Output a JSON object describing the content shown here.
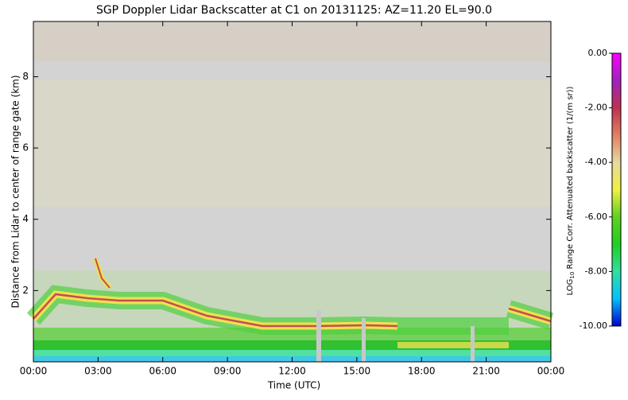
{
  "chart_data": {
    "type": "heatmap",
    "title": "SGP Doppler Lidar Backscatter at C1 on 20131125: AZ=11.20 EL=90.0",
    "x_label": "Time (UTC)",
    "y_label": "Distance from Lidar to center of range gate (km)",
    "xlim": [
      0,
      24
    ],
    "xticks": [
      {
        "value": 0,
        "label": "00:00"
      },
      {
        "value": 3,
        "label": "03:00"
      },
      {
        "value": 6,
        "label": "06:00"
      },
      {
        "value": 9,
        "label": "09:00"
      },
      {
        "value": 12,
        "label": "12:00"
      },
      {
        "value": 15,
        "label": "15:00"
      },
      {
        "value": 18,
        "label": "18:00"
      },
      {
        "value": 21,
        "label": "21:00"
      },
      {
        "value": 24,
        "label": "00:00"
      }
    ],
    "ylim": [
      0,
      9.55
    ],
    "yticks": [
      2,
      4,
      6,
      8
    ],
    "colorbar": {
      "label": {
        "base": "LOG",
        "subscript": "10",
        "text": " Range Corr. Attenuated backscatter (1/(m sr))"
      },
      "lim": [
        -10,
        0
      ],
      "ticks": [
        {
          "value": 0,
          "label": "0.00"
        },
        {
          "value": -2,
          "label": "-2.00"
        },
        {
          "value": -4,
          "label": "-4.00"
        },
        {
          "value": -6,
          "label": "-6.00"
        },
        {
          "value": -8,
          "label": "-8.00"
        },
        {
          "value": -10,
          "label": "-10.00"
        }
      ],
      "colormap": [
        "#0000d0",
        "#00c0ff",
        "#30e0a0",
        "#20d020",
        "#60d020",
        "#f0f040",
        "#e8d8a0",
        "#e08060",
        "#c03050",
        "#a020c0",
        "#ff00ff"
      ]
    }
  }
}
